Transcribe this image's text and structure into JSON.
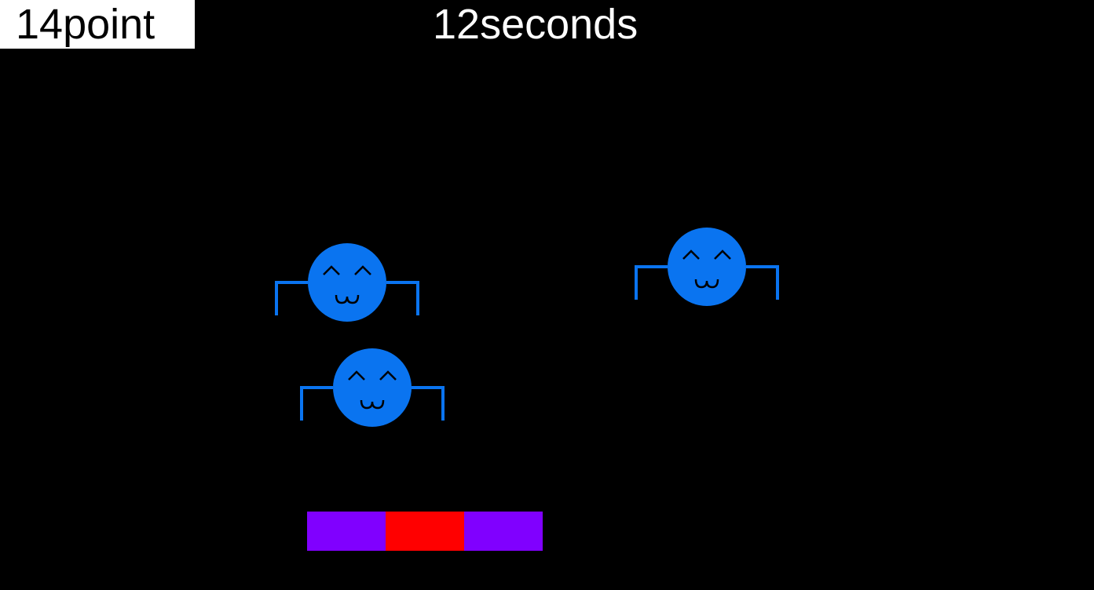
{
  "hud": {
    "score_label": "14point",
    "timer_label": "12seconds"
  },
  "colors": {
    "background": "#000000",
    "score_box": "#ffffff",
    "enemy": "#0a74f0",
    "enemy_face": "#000000",
    "paddle_side": "#8000ff",
    "paddle_center": "#ff0000"
  },
  "enemies": [
    {
      "name": "enemy-1",
      "icon": "smiling-spider-icon"
    },
    {
      "name": "enemy-2",
      "icon": "smiling-spider-icon"
    },
    {
      "name": "enemy-3",
      "icon": "smiling-spider-icon"
    }
  ],
  "paddle": {
    "segments": [
      {
        "name": "paddle-left-segment",
        "color": "#8000ff"
      },
      {
        "name": "paddle-center-segment",
        "color": "#ff0000"
      },
      {
        "name": "paddle-right-segment",
        "color": "#8000ff"
      }
    ]
  }
}
